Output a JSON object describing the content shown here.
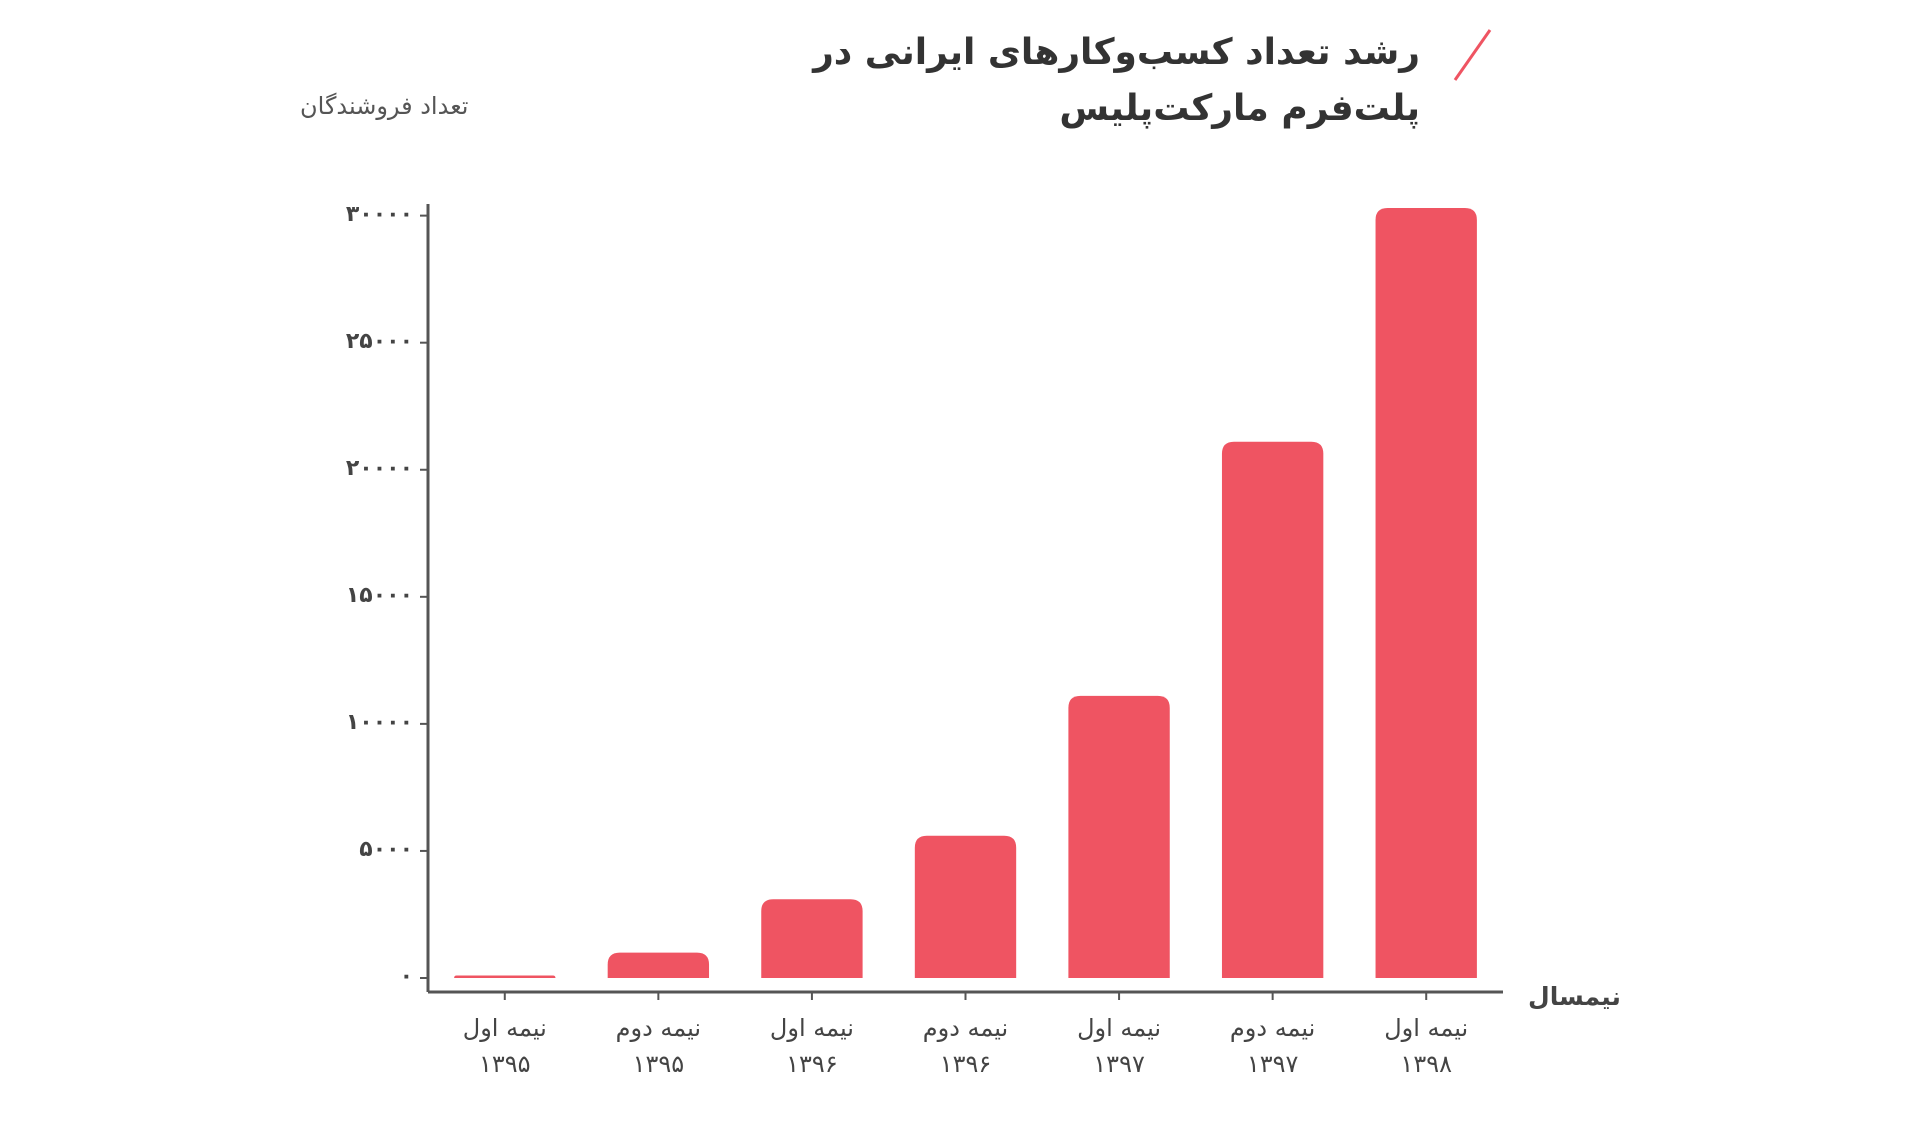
{
  "chart_data": {
    "type": "bar",
    "title": "رشد تعداد کسب‌وکارهای ایرانی در\nپلت‌فرم مارکت‌پلیس",
    "y_label": "تعداد فروشندگان",
    "x_label": "نیمسال",
    "categories": [
      "نیمه اول\n۱۳۹۵",
      "نیمه دوم\n۱۳۹۵",
      "نیمه اول\n۱۳۹۶",
      "نیمه دوم\n۱۳۹۶",
      "نیمه اول\n۱۳۹۷",
      "نیمه دوم\n۱۳۹۷",
      "نیمه اول\n۱۳۹۸"
    ],
    "values": [
      100,
      1000,
      3100,
      5600,
      11100,
      21100,
      30300
    ],
    "color": "#ef5462",
    "ylim": [
      0,
      30300
    ],
    "yticks": [
      {
        "value": 0,
        "label": "۰"
      },
      {
        "value": 5000,
        "label": "۵۰۰۰"
      },
      {
        "value": 10000,
        "label": "۱۰۰۰۰"
      },
      {
        "value": 15000,
        "label": "۱۵۰۰۰"
      },
      {
        "value": 20000,
        "label": "۲۰۰۰۰"
      },
      {
        "value": 25000,
        "label": "۲۵۰۰۰"
      },
      {
        "value": 30000,
        "label": "۳۰۰۰۰"
      }
    ],
    "grid": false
  }
}
